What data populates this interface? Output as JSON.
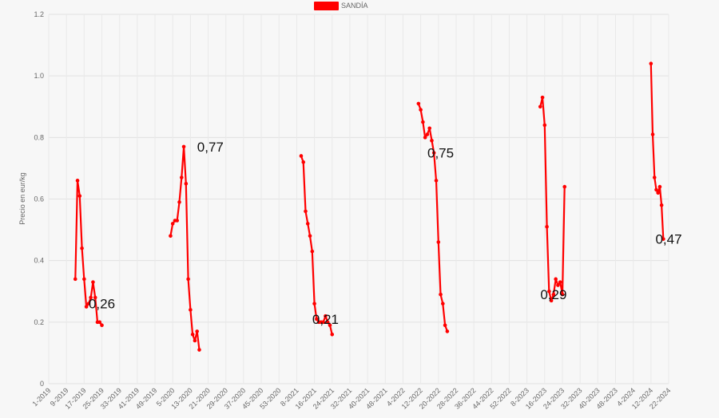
{
  "chart_data": {
    "type": "line",
    "ylabel": "Precio en eur/kg",
    "ylim": [
      0,
      1.2
    ],
    "yticks": [
      "0",
      "0.2",
      "0.4",
      "0.6",
      "0.8",
      "1.0",
      "1.2"
    ],
    "legend": {
      "position": "top-center",
      "label": "SANDÍA",
      "color": "#ff0000"
    },
    "grid": true,
    "x_tick_labels": [
      "1-2019",
      "9-2019",
      "17-2019",
      "25-2019",
      "33-2019",
      "41-2019",
      "49-2019",
      "5-2020",
      "13-2020",
      "21-2020",
      "29-2020",
      "37-2020",
      "45-2020",
      "53-2020",
      "8-2021",
      "16-2021",
      "24-2021",
      "32-2021",
      "40-2021",
      "48-2021",
      "4-2022",
      "12-2022",
      "20-2022",
      "28-2022",
      "36-2022",
      "44-2022",
      "52-2022",
      "8-2023",
      "16-2023",
      "24-2023",
      "32-2023",
      "40-2023",
      "48-2023",
      "4-2024",
      "12-2024",
      "22-2024"
    ],
    "series": [
      {
        "name": "SANDÍA",
        "color": "#ff0000",
        "segments": [
          {
            "x_start": "13-2019",
            "values": [
              0.34,
              0.66,
              0.61,
              0.44,
              0.34,
              0.25,
              0.26,
              0.28,
              0.33,
              0.28,
              0.2,
              0.2,
              0.19
            ]
          },
          {
            "x_start": "4-2020",
            "values": [
              0.48,
              0.52,
              0.53,
              0.53,
              0.59,
              0.67,
              0.77,
              0.65,
              0.34,
              0.24,
              0.16,
              0.14,
              0.17,
              0.11
            ]
          },
          {
            "x_start": "10-2021",
            "values": [
              0.74,
              0.72,
              0.56,
              0.52,
              0.48,
              0.43,
              0.26,
              0.21,
              0.2,
              0.2,
              0.2,
              0.22,
              0.2,
              0.19,
              0.16
            ]
          },
          {
            "x_start": "11-2022",
            "values": [
              0.91,
              0.89,
              0.85,
              0.8,
              0.81,
              0.83,
              0.79,
              0.75,
              0.66,
              0.46,
              0.29,
              0.26,
              0.19,
              0.17
            ]
          },
          {
            "x_start": "14-2023",
            "values": [
              0.9,
              0.93,
              0.84,
              0.51,
              0.3,
              0.27,
              0.29,
              0.34,
              0.32,
              0.33,
              0.29,
              0.64
            ]
          },
          {
            "x_start": "12-2024",
            "values": [
              1.04,
              0.81,
              0.67,
              0.63,
              0.62,
              0.64,
              0.58,
              0.47
            ]
          }
        ]
      }
    ],
    "data_labels": [
      {
        "text": "0,26",
        "x": "25-2019",
        "y": 0.26
      },
      {
        "text": "0,77",
        "x": "22-2020",
        "y": 0.77
      },
      {
        "text": "0,21",
        "x": "21-2021",
        "y": 0.21
      },
      {
        "text": "0,75",
        "x": "21-2022",
        "y": 0.75
      },
      {
        "text": "0,29",
        "x": "20-2023",
        "y": 0.29
      },
      {
        "text": "0,47",
        "x": "22-2024",
        "y": 0.47
      }
    ]
  }
}
